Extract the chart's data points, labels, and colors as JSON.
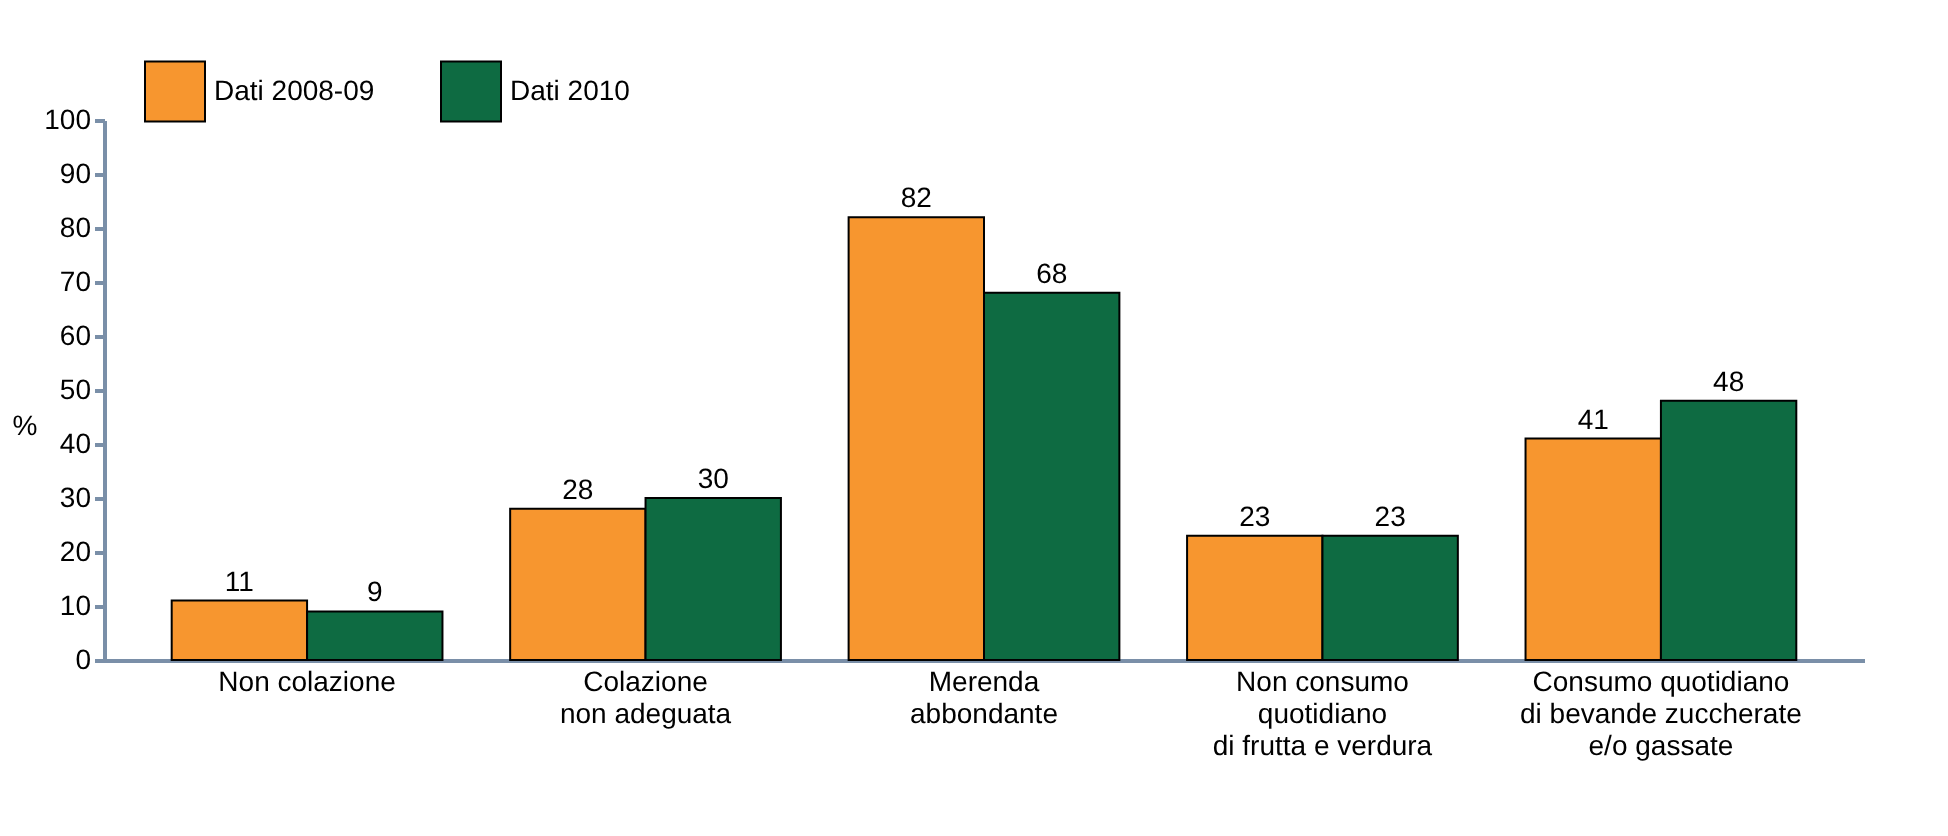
{
  "chart_data": {
    "type": "bar",
    "ylabel": "%",
    "categories": [
      "Non colazione",
      "Colazione\nnon adeguata",
      "Merenda\nabbondante",
      "Non consumo\nquotidiano\ndi frutta e verdura",
      "Consumo quotidiano\ndi bevande zuccherate\ne/o gassate"
    ],
    "series": [
      {
        "name": "Dati 2008-09",
        "color": "#f7962f",
        "values": [
          11,
          28,
          82,
          23,
          41
        ]
      },
      {
        "name": "Dati 2010",
        "color": "#0e6b42",
        "values": [
          9,
          30,
          68,
          23,
          48
        ]
      }
    ],
    "ylim": [
      0,
      100
    ],
    "yticks": [
      0,
      10,
      20,
      30,
      40,
      50,
      60,
      70,
      80,
      90,
      100
    ],
    "data_labels": true,
    "grid": false,
    "legend": "top left"
  }
}
